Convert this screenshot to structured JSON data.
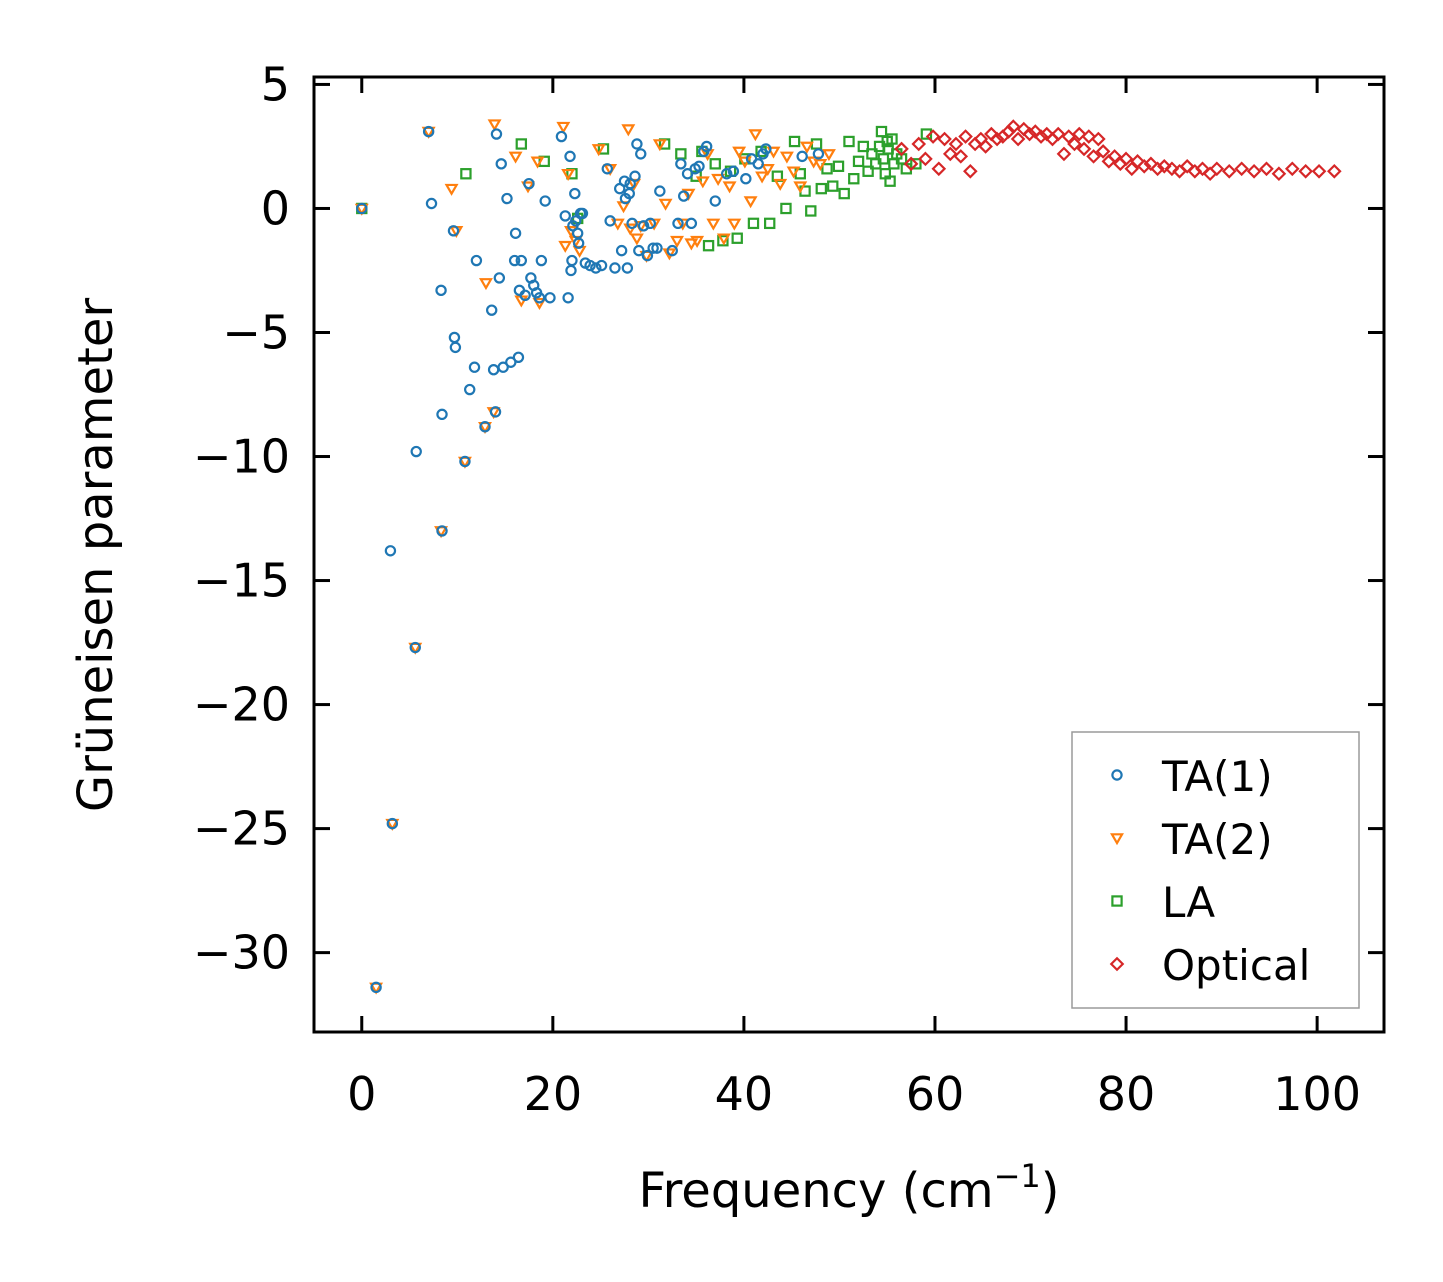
{
  "chart_data": {
    "type": "scatter",
    "title": "",
    "xlabel": "Frequency (cm",
    "xlabel_superscript": "−1",
    "xlabel_suffix": ")",
    "ylabel": "Grüneisen parameter",
    "xlim": [
      -5,
      107
    ],
    "ylim": [
      -33.2,
      5.3
    ],
    "x_ticks": [
      0,
      20,
      40,
      60,
      80,
      100
    ],
    "x_tick_labels": [
      "0",
      "20",
      "40",
      "60",
      "80",
      "100"
    ],
    "y_ticks": [
      5,
      0,
      -5,
      -10,
      -15,
      -20,
      -25,
      -30
    ],
    "y_tick_labels": [
      "5",
      "0",
      "−5",
      "−10",
      "−15",
      "−20",
      "−25",
      "−30"
    ],
    "legend_position": "bottom-right",
    "series": [
      {
        "name": "TA(1)",
        "marker": "circle",
        "color": "#1f77b4",
        "x": [
          0.0,
          1.5,
          3.0,
          3.2,
          5.6,
          5.7,
          7.0,
          7.3,
          8.3,
          8.4,
          8.4,
          9.6,
          9.7,
          9.8,
          10.8,
          11.3,
          11.8,
          12.0,
          12.9,
          13.6,
          13.8,
          14.0,
          14.1,
          14.4,
          14.6,
          14.8,
          15.2,
          15.6,
          16.0,
          16.1,
          16.4,
          16.5,
          16.7,
          17.1,
          17.5,
          17.7,
          18.0,
          18.3,
          18.6,
          18.8,
          19.2,
          19.7,
          20.9,
          21.3,
          21.6,
          21.8,
          21.9,
          22.0,
          22.1,
          22.3,
          22.4,
          22.6,
          22.7,
          22.9,
          23.1,
          23.4,
          23.9,
          24.5,
          25.1,
          25.7,
          26.0,
          26.5,
          27.0,
          27.2,
          27.5,
          27.6,
          27.8,
          28.0,
          28.1,
          28.3,
          28.6,
          28.8,
          29.0,
          29.2,
          29.5,
          29.9,
          30.2,
          30.5,
          30.9,
          31.2,
          32.5,
          33.1,
          33.4,
          33.7,
          34.1,
          34.5,
          34.9,
          35.3,
          35.8,
          36.1,
          37.0,
          38.2,
          38.9,
          40.2,
          40.8,
          41.5,
          42.0,
          42.3,
          46.1,
          47.8
        ],
        "y": [
          0.0,
          -31.4,
          -13.8,
          -24.8,
          -17.7,
          -9.8,
          3.1,
          0.2,
          -3.3,
          -8.3,
          -13.0,
          -0.9,
          -5.2,
          -5.6,
          -10.2,
          -7.3,
          -6.4,
          -2.1,
          -8.8,
          -4.1,
          -6.5,
          -8.2,
          3.0,
          -2.8,
          1.8,
          -6.4,
          0.4,
          -6.2,
          -2.1,
          -1.0,
          -6.0,
          -3.3,
          -2.1,
          -3.5,
          1.0,
          -2.8,
          -3.1,
          -3.4,
          -3.6,
          -2.1,
          0.3,
          -3.6,
          2.9,
          -0.3,
          -3.6,
          2.1,
          -2.5,
          -2.1,
          -0.7,
          0.6,
          -0.5,
          -1.0,
          -1.4,
          -0.2,
          -0.2,
          -2.2,
          -2.3,
          -2.4,
          -2.3,
          1.6,
          -0.5,
          -2.4,
          0.8,
          -1.7,
          1.1,
          0.4,
          -2.4,
          0.6,
          1.0,
          -0.6,
          1.3,
          2.6,
          -1.7,
          2.2,
          -0.7,
          -1.9,
          -0.6,
          -1.6,
          -1.6,
          0.7,
          -1.7,
          -0.6,
          1.8,
          0.5,
          1.4,
          -0.6,
          1.6,
          1.7,
          2.3,
          2.5,
          0.3,
          1.4,
          1.5,
          1.2,
          2.0,
          1.8,
          2.2,
          2.4,
          2.1,
          2.2
        ]
      },
      {
        "name": "TA(2)",
        "marker": "triangle-down",
        "color": "#ff7f0e",
        "x": [
          0.0,
          1.5,
          3.2,
          5.6,
          7.0,
          8.3,
          9.4,
          9.9,
          10.8,
          12.9,
          13.0,
          13.8,
          13.9,
          16.1,
          16.7,
          17.4,
          18.4,
          18.6,
          21.1,
          21.3,
          21.6,
          21.9,
          22.4,
          22.8,
          24.8,
          26.0,
          26.8,
          27.4,
          27.9,
          28.1,
          28.5,
          28.8,
          29.2,
          29.8,
          30.6,
          31.2,
          31.8,
          32.2,
          33.0,
          33.6,
          34.2,
          34.5,
          35.1,
          35.7,
          36.2,
          36.8,
          37.3,
          37.9,
          38.5,
          39.0,
          39.5,
          40.1,
          40.7,
          41.2,
          41.9,
          42.5,
          43.1,
          43.8,
          44.5,
          45.2,
          45.9,
          46.6,
          47.3,
          48.0,
          48.9
        ],
        "y": [
          0.0,
          -31.4,
          -24.8,
          -17.7,
          3.1,
          -13.0,
          0.8,
          -0.9,
          -10.2,
          -8.8,
          -3.0,
          -8.2,
          3.4,
          2.1,
          -3.7,
          0.9,
          1.9,
          -3.8,
          3.3,
          -1.5,
          1.4,
          -0.9,
          -1.3,
          -1.7,
          2.4,
          1.6,
          -0.6,
          0.1,
          3.2,
          -0.8,
          1.0,
          -1.2,
          -0.7,
          -1.9,
          -0.6,
          2.6,
          0.2,
          -1.8,
          -1.3,
          -0.6,
          0.6,
          -1.4,
          -1.3,
          1.1,
          2.2,
          -0.6,
          1.2,
          -1.2,
          0.9,
          -0.6,
          2.3,
          1.9,
          0.3,
          3.0,
          1.3,
          1.6,
          2.3,
          1.0,
          2.1,
          1.5,
          0.9,
          2.5,
          1.9,
          1.8,
          2.2
        ]
      },
      {
        "name": "LA",
        "marker": "square",
        "color": "#2ca02c",
        "x": [
          0.0,
          10.9,
          16.7,
          19.1,
          22.0,
          22.6,
          25.3,
          31.7,
          33.4,
          35.0,
          35.6,
          36.3,
          37.0,
          37.8,
          38.6,
          39.3,
          40.1,
          41.0,
          41.8,
          42.7,
          43.5,
          44.4,
          45.3,
          45.9,
          46.4,
          47.0,
          47.6,
          48.1,
          48.7,
          49.3,
          49.9,
          50.5,
          51.0,
          51.5,
          52.0,
          52.5,
          53.0,
          53.4,
          53.8,
          54.2,
          54.4,
          54.6,
          54.8,
          55.0,
          55.1,
          55.3,
          55.5,
          55.7,
          56.0,
          56.5,
          57.0,
          58.0,
          59.1
        ],
        "y": [
          0.0,
          1.4,
          2.6,
          1.9,
          1.4,
          -0.4,
          2.4,
          2.6,
          2.2,
          1.3,
          2.3,
          -1.5,
          1.8,
          -1.3,
          1.5,
          -1.2,
          2.0,
          -0.6,
          2.3,
          -0.6,
          1.3,
          0.0,
          2.7,
          1.4,
          0.7,
          -0.1,
          2.6,
          0.8,
          1.6,
          0.9,
          1.7,
          0.6,
          2.7,
          1.2,
          1.9,
          2.5,
          1.5,
          2.2,
          1.8,
          2.5,
          3.1,
          2.0,
          1.4,
          2.7,
          2.4,
          1.1,
          2.8,
          1.8,
          2.2,
          2.0,
          1.6,
          1.8,
          3.0
        ]
      },
      {
        "name": "Optical",
        "marker": "diamond",
        "color": "#d62728",
        "x": [
          56.5,
          57.5,
          58.3,
          59.0,
          59.8,
          60.4,
          61.0,
          61.6,
          62.2,
          62.7,
          63.2,
          63.7,
          64.2,
          64.8,
          65.3,
          65.9,
          66.5,
          67.1,
          67.7,
          68.2,
          68.7,
          69.3,
          69.9,
          70.5,
          71.1,
          71.7,
          72.3,
          72.9,
          73.5,
          74.0,
          74.6,
          75.1,
          75.6,
          76.1,
          76.6,
          77.1,
          77.6,
          78.2,
          78.8,
          79.4,
          80.0,
          80.6,
          81.2,
          81.9,
          82.6,
          83.3,
          84.0,
          84.8,
          85.6,
          86.4,
          87.2,
          88.0,
          88.8,
          89.5,
          90.8,
          92.1,
          93.4,
          94.7,
          96.0,
          97.4,
          98.8,
          100.2,
          101.8
        ],
        "y": [
          2.4,
          1.8,
          2.6,
          2.0,
          2.9,
          1.6,
          2.8,
          2.2,
          2.6,
          2.1,
          2.9,
          1.5,
          2.6,
          2.8,
          2.5,
          3.0,
          2.8,
          2.9,
          3.1,
          3.3,
          2.8,
          3.2,
          3.0,
          3.1,
          2.9,
          3.0,
          2.8,
          3.0,
          2.2,
          2.9,
          2.6,
          3.0,
          2.4,
          2.9,
          2.1,
          2.8,
          2.3,
          1.9,
          2.1,
          1.8,
          2.0,
          1.6,
          1.9,
          1.7,
          1.8,
          1.6,
          1.7,
          1.6,
          1.5,
          1.7,
          1.5,
          1.6,
          1.4,
          1.6,
          1.5,
          1.6,
          1.5,
          1.6,
          1.4,
          1.6,
          1.5,
          1.5,
          1.5
        ]
      }
    ]
  }
}
